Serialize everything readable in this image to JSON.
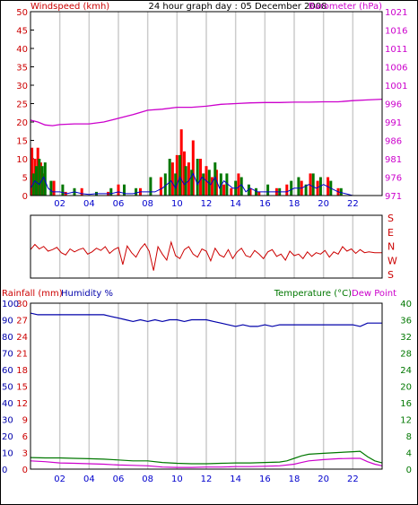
{
  "colors": {
    "wind": "#cc0000",
    "baro": "#cc00cc",
    "gust": "#ff0000",
    "avg": "#0000cc",
    "green": "#007700",
    "humidity": "#0000aa",
    "temperature": "#007700",
    "dewpoint": "#cc00cc",
    "rain": "#cc0000",
    "grid": "#cccccc",
    "frame": "#000000"
  },
  "chart_data": [
    {
      "type": "bar",
      "title": "24 hour graph day : 05 December 2008",
      "left_label": "Windspeed (kmh)",
      "right_label": "Barometer (hPa)",
      "x_ticks": [
        "02",
        "04",
        "06",
        "08",
        "10",
        "12",
        "14",
        "16",
        "18",
        "20",
        "22"
      ],
      "xlim": [
        0,
        24
      ],
      "y_left_ticks": [
        "0",
        "5",
        "10",
        "15",
        "20",
        "25",
        "30",
        "35",
        "40",
        "45",
        "50"
      ],
      "ylim_left": [
        0,
        50
      ],
      "y_right_ticks": [
        "971",
        "976",
        "981",
        "986",
        "991",
        "996",
        "1001",
        "1006",
        "1011",
        "1016",
        "1021"
      ],
      "ylim_right": [
        971,
        1021
      ],
      "barometer": {
        "x": [
          0,
          0.5,
          1,
          1.5,
          2,
          3,
          4,
          5,
          6,
          7,
          8,
          9,
          10,
          11,
          12,
          13,
          14,
          15,
          16,
          17,
          18,
          19,
          20,
          21,
          22,
          23,
          24
        ],
        "y": [
          991.5,
          991.0,
          990.2,
          990.0,
          990.3,
          990.5,
          990.5,
          991.0,
          992.0,
          993.0,
          994.2,
          994.5,
          995.0,
          995.0,
          995.3,
          995.8,
          996.0,
          996.2,
          996.3,
          996.3,
          996.4,
          996.4,
          996.5,
          996.5,
          996.8,
          997.0,
          997.2
        ]
      },
      "gust": {
        "x": [
          0.1,
          0.3,
          0.5,
          0.7,
          0.9,
          1.6,
          2.4,
          3.5,
          5.3,
          6.0,
          7.5,
          8.9,
          9.7,
          10.0,
          10.3,
          10.5,
          10.8,
          11.1,
          11.6,
          12.0,
          12.4,
          12.7,
          13.2,
          13.7,
          14.2,
          15.0,
          15.6,
          16.8,
          17.5,
          18.5,
          19.1,
          19.6,
          20.3,
          21.0
        ],
        "y": [
          13,
          10,
          13,
          9,
          6,
          4,
          1,
          2,
          1,
          3,
          2,
          5,
          9,
          11,
          18,
          12,
          9,
          15,
          10,
          8,
          5,
          7,
          3,
          2,
          6,
          2,
          1,
          2,
          3,
          4,
          6,
          4,
          5,
          2
        ]
      },
      "peak": {
        "x": [
          0.2,
          0.4,
          0.6,
          0.8,
          1.0,
          1.4,
          2.2,
          3.0,
          4.5,
          5.5,
          6.4,
          7.2,
          8.2,
          9.2,
          9.5,
          9.9,
          10.2,
          10.6,
          11.0,
          11.4,
          11.8,
          12.2,
          12.6,
          13.0,
          13.4,
          14.0,
          14.4,
          14.9,
          15.4,
          16.2,
          17.0,
          17.8,
          18.3,
          18.8,
          19.3,
          19.8,
          20.5,
          21.2
        ],
        "y": [
          6,
          8,
          10,
          8,
          9,
          4,
          3,
          2,
          1,
          2,
          3,
          2,
          5,
          6,
          10,
          6,
          11,
          8,
          7,
          10,
          6,
          7,
          9,
          6,
          6,
          4,
          5,
          3,
          2,
          3,
          2,
          4,
          5,
          3,
          6,
          5,
          4,
          2
        ]
      },
      "average": {
        "x": [
          0,
          0.3,
          0.6,
          0.9,
          1.2,
          1.5,
          2.0,
          2.5,
          3.0,
          3.5,
          4.0,
          4.5,
          5.0,
          5.5,
          6.0,
          6.5,
          7.0,
          7.5,
          8.0,
          8.5,
          9.0,
          9.3,
          9.6,
          9.9,
          10.2,
          10.5,
          10.8,
          11.1,
          11.4,
          11.7,
          12.0,
          12.3,
          12.6,
          12.9,
          13.2,
          13.5,
          13.8,
          14.1,
          14.4,
          14.7,
          15.0,
          15.5,
          16.0,
          16.5,
          17.0,
          17.5,
          18.0,
          18.5,
          19.0,
          19.5,
          20.0,
          20.5,
          21.0,
          21.5,
          22.0,
          24.0
        ],
        "y": [
          2,
          4,
          3,
          5,
          2,
          1,
          1,
          0.5,
          1,
          0.5,
          0.3,
          0.5,
          0.5,
          0.5,
          1,
          0.5,
          0.5,
          1,
          1,
          1,
          2,
          3,
          4,
          2,
          5,
          3,
          4,
          6,
          3,
          5,
          4,
          3,
          5,
          2,
          4,
          3,
          2,
          2,
          3,
          1,
          2,
          1,
          1,
          1,
          1,
          1,
          2,
          2,
          3,
          2,
          3,
          2,
          1,
          0.5,
          0,
          0
        ]
      }
    },
    {
      "type": "line",
      "right_labels": [
        "S",
        "E",
        "N",
        "W",
        "S"
      ],
      "xlim": [
        0,
        24
      ],
      "direction": {
        "x": [
          0,
          0.3,
          0.6,
          0.9,
          1.2,
          1.5,
          1.8,
          2.1,
          2.4,
          2.7,
          3.0,
          3.3,
          3.6,
          3.9,
          4.2,
          4.5,
          4.8,
          5.1,
          5.4,
          5.7,
          6.0,
          6.3,
          6.6,
          6.9,
          7.2,
          7.5,
          7.8,
          8.1,
          8.4,
          8.7,
          9.0,
          9.3,
          9.6,
          9.9,
          10.2,
          10.5,
          10.8,
          11.1,
          11.4,
          11.7,
          12.0,
          12.3,
          12.6,
          12.9,
          13.2,
          13.5,
          13.8,
          14.1,
          14.4,
          14.7,
          15.0,
          15.3,
          15.6,
          15.9,
          16.2,
          16.5,
          16.8,
          17.1,
          17.4,
          17.7,
          18.0,
          18.3,
          18.6,
          18.9,
          19.2,
          19.5,
          19.8,
          20.1,
          20.4,
          20.7,
          21.0,
          21.3,
          21.6,
          21.9,
          22.2,
          22.5,
          22.8,
          23.1,
          23.5,
          24.0
        ],
        "y": [
          200,
          165,
          195,
          178,
          210,
          200,
          185,
          220,
          235,
          195,
          215,
          200,
          190,
          230,
          215,
          190,
          205,
          180,
          225,
          200,
          185,
          300,
          175,
          220,
          250,
          195,
          160,
          210,
          340,
          180,
          230,
          270,
          150,
          240,
          260,
          200,
          180,
          230,
          250,
          195,
          210,
          275,
          190,
          235,
          250,
          200,
          260,
          215,
          190,
          240,
          250,
          205,
          230,
          260,
          215,
          200,
          245,
          230,
          270,
          210,
          240,
          230,
          260,
          215,
          245,
          220,
          230,
          205,
          250,
          215,
          230,
          180,
          210,
          195,
          225,
          200,
          220,
          215,
          220,
          220
        ]
      }
    },
    {
      "type": "line",
      "left_label_1": "Rainfall (mm)",
      "left_label_2": "Humidity %",
      "right_label_1": "Temperature (°C)",
      "right_label_2": "Dew Point",
      "x_ticks": [
        "02",
        "04",
        "06",
        "08",
        "10",
        "12",
        "14",
        "16",
        "18",
        "20",
        "22"
      ],
      "xlim": [
        0,
        24
      ],
      "rain_ticks": [
        "0",
        "3",
        "6",
        "9",
        "12",
        "15",
        "18",
        "21",
        "24",
        "27",
        "30"
      ],
      "humidity_ticks": [
        "0",
        "10",
        "20",
        "30",
        "40",
        "50",
        "60",
        "70",
        "80",
        "90",
        "100"
      ],
      "temp_ticks": [
        "0",
        "4",
        "8",
        "12",
        "16",
        "20",
        "24",
        "28",
        "32",
        "36",
        "40"
      ],
      "ylim": [
        0,
        40
      ],
      "humidity": {
        "x": [
          0,
          0.5,
          1,
          2,
          3,
          4,
          5,
          5.5,
          6,
          6.5,
          7,
          7.5,
          8,
          8.5,
          9,
          9.5,
          10,
          10.5,
          11,
          11.5,
          12,
          12.5,
          13,
          13.5,
          14,
          14.5,
          15,
          15.5,
          16,
          16.5,
          17,
          17.5,
          18,
          18.5,
          19,
          19.5,
          20,
          20.5,
          21,
          21.5,
          22,
          22.5,
          23,
          24
        ],
        "y": [
          94,
          93,
          93,
          93,
          93,
          93,
          93,
          92,
          91,
          90,
          89,
          90,
          89,
          90,
          89,
          90,
          90,
          89,
          90,
          90,
          90,
          89,
          88,
          87,
          86,
          87,
          86,
          86,
          87,
          86,
          87,
          87,
          87,
          87,
          87,
          87,
          87,
          87,
          87,
          87,
          87,
          86,
          88,
          88
        ]
      },
      "temperature": {
        "x": [
          0,
          1,
          2,
          3,
          4,
          5,
          6,
          7,
          8,
          9,
          10,
          11,
          12,
          13,
          14,
          15,
          16,
          17,
          17.5,
          18,
          18.5,
          19,
          20,
          21,
          22,
          22.5,
          23,
          23.5,
          24
        ],
        "y": [
          2.8,
          2.7,
          2.7,
          2.6,
          2.5,
          2.4,
          2.2,
          2.0,
          2.0,
          1.6,
          1.4,
          1.3,
          1.3,
          1.4,
          1.5,
          1.5,
          1.6,
          1.7,
          2.0,
          2.6,
          3.2,
          3.6,
          3.8,
          4.0,
          4.2,
          4.3,
          3.0,
          2.0,
          1.5
        ]
      },
      "dewpoint": {
        "x": [
          0,
          1,
          2,
          3,
          4,
          5,
          6,
          7,
          8,
          9,
          10,
          11,
          12,
          13,
          14,
          15,
          16,
          17,
          18,
          18.5,
          19,
          20,
          21,
          22,
          22.5,
          23,
          23.5,
          24
        ],
        "y": [
          2.0,
          1.8,
          1.5,
          1.4,
          1.3,
          1.2,
          1.0,
          0.9,
          0.8,
          0.5,
          0.4,
          0.4,
          0.5,
          0.5,
          0.6,
          0.6,
          0.7,
          0.8,
          1.2,
          1.6,
          2.0,
          2.3,
          2.5,
          2.6,
          2.6,
          1.8,
          1.2,
          0.8
        ]
      },
      "rain": {
        "x": [
          0,
          24
        ],
        "y": [
          0,
          0
        ]
      }
    }
  ]
}
